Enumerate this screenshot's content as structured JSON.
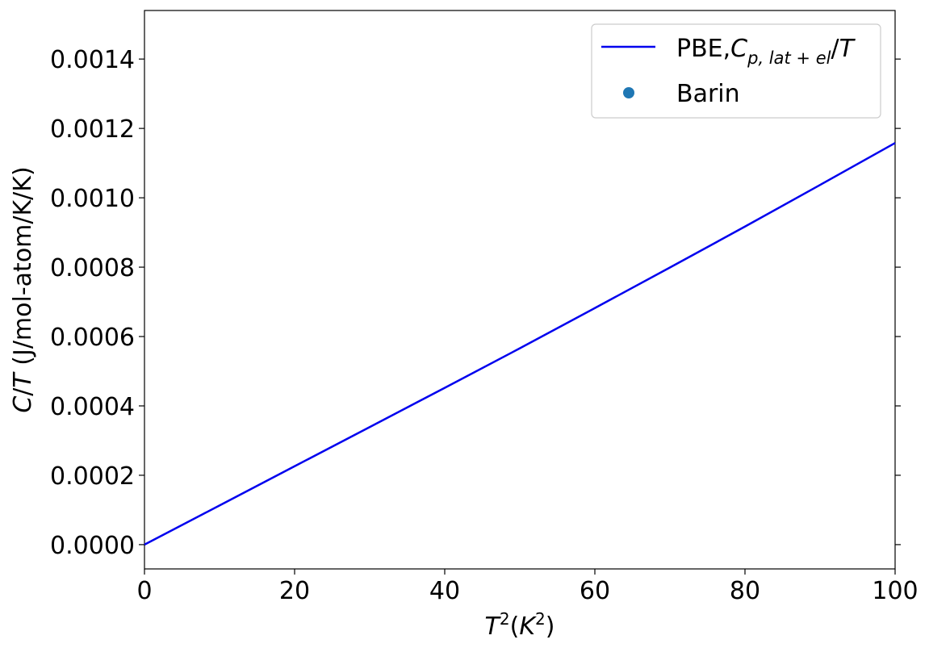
{
  "chart_data": {
    "type": "line",
    "title": "",
    "xlabel": "T²(K²)",
    "ylabel": "C/T (J/mol-atom/K/K)",
    "xlim": [
      0,
      100
    ],
    "ylim": [
      -7e-05,
      0.00154
    ],
    "x_ticks": [
      0,
      20,
      40,
      60,
      80,
      100
    ],
    "y_ticks": [
      0.0,
      0.0002,
      0.0004,
      0.0006,
      0.0008,
      0.001,
      0.0012,
      0.0014
    ],
    "x_tick_labels": [
      "0",
      "20",
      "40",
      "60",
      "80",
      "100"
    ],
    "y_tick_labels": [
      "0.0000",
      "0.0002",
      "0.0004",
      "0.0006",
      "0.0008",
      "0.0010",
      "0.0012",
      "0.0014"
    ],
    "grid": false,
    "legend_position": "top-right",
    "series": [
      {
        "name": "PBE,Cp,lat+el/T",
        "kind": "line",
        "color": "#0000ee",
        "x": [
          0,
          10,
          20,
          30,
          40,
          50,
          60,
          70,
          80,
          90,
          100
        ],
        "y": [
          0.0,
          0.000113,
          0.000226,
          0.000339,
          0.000452,
          0.000566,
          0.000682,
          0.000799,
          0.000917,
          0.001037,
          0.001158
        ]
      },
      {
        "name": "Barin",
        "kind": "scatter",
        "color": "#1f77b4",
        "x": [],
        "y": []
      }
    ]
  }
}
